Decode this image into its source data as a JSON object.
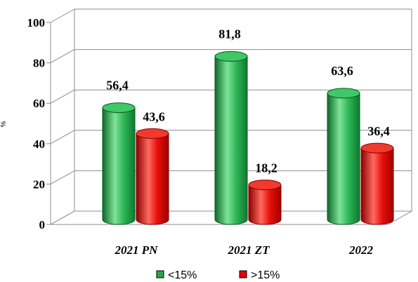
{
  "chart_data": {
    "type": "bar",
    "title": "",
    "xlabel": "",
    "ylabel": "%",
    "ylim": [
      0,
      100
    ],
    "yticks": [
      "0",
      "20",
      "40",
      "60",
      "80",
      "100"
    ],
    "categories": [
      "2021 PN",
      "2021 ZT",
      "2022"
    ],
    "series": [
      {
        "name": "<15%",
        "values": [
          56.4,
          81.8,
          63.6
        ],
        "labels": [
          "56,4",
          "81,8",
          "63,6"
        ],
        "color": "#22a84a"
      },
      {
        "name": ">15%",
        "values": [
          43.6,
          18.2,
          36.4
        ],
        "labels": [
          "43,6",
          "18,2",
          "36,4"
        ],
        "color": "#e8000b"
      }
    ],
    "legend": "bottom",
    "grid": true,
    "style": "3d-cylinder"
  }
}
